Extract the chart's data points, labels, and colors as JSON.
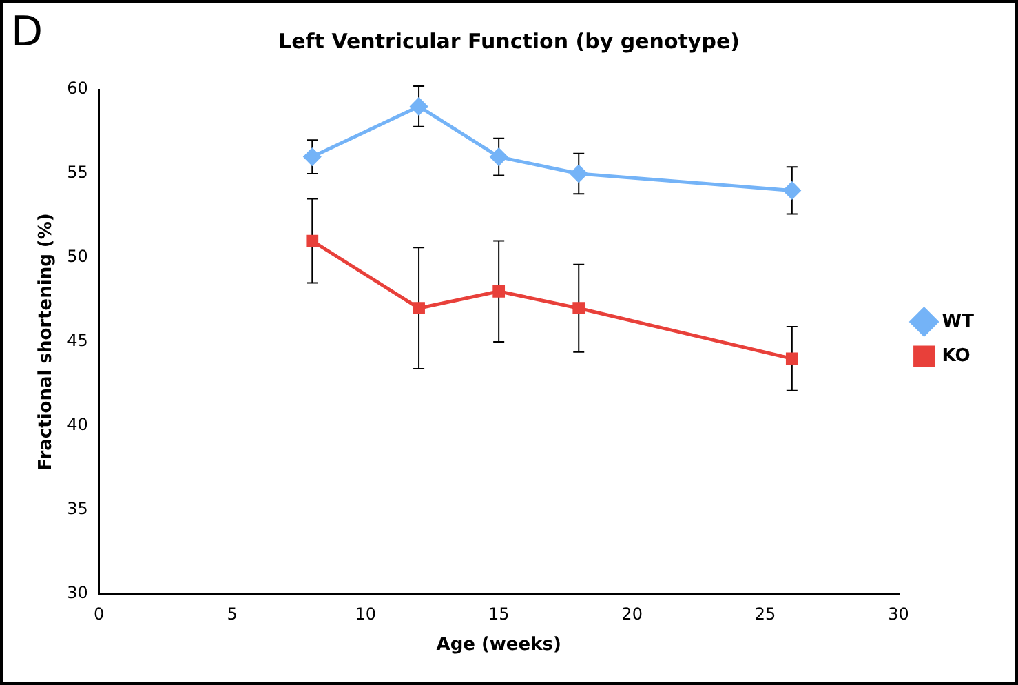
{
  "chart_data": {
    "type": "line",
    "title": "Left Ventricular Function (by genotype)",
    "xlabel": "Age (weeks)",
    "ylabel": "Fractional shortening (%)",
    "annotations": [
      "D"
    ],
    "x": [
      8,
      12,
      15,
      18,
      26
    ],
    "series": [
      {
        "name": "WT",
        "color": "#74b3f7",
        "marker": "diamond",
        "values": [
          56,
          59,
          56,
          55,
          54
        ],
        "errors": [
          1.0,
          1.2,
          1.1,
          1.2,
          1.4
        ]
      },
      {
        "name": "KO",
        "color": "#e8403a",
        "marker": "square",
        "values": [
          51,
          47,
          48,
          47,
          44
        ],
        "errors": [
          2.5,
          3.6,
          3.0,
          2.6,
          1.9
        ]
      }
    ],
    "xlim": [
      0,
      30
    ],
    "xticks": [
      0,
      5,
      10,
      15,
      20,
      25,
      30
    ],
    "ylim": [
      30,
      60
    ],
    "yticks": [
      30,
      35,
      40,
      45,
      50,
      55,
      60
    ],
    "grid": false,
    "legend": "right",
    "line_style": "solid"
  }
}
